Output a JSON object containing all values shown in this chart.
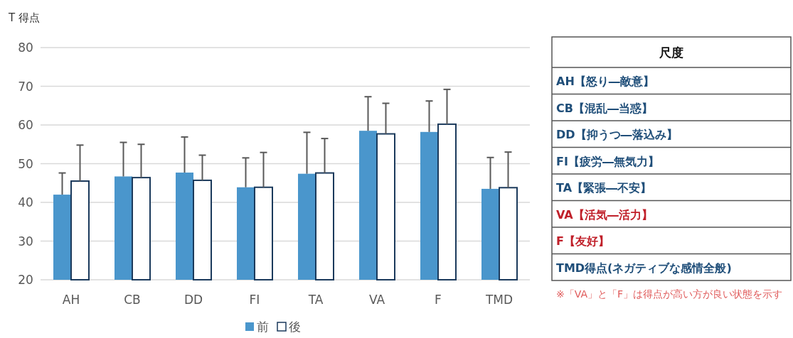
{
  "chart_data": [
    {
      "type": "bar",
      "ylabel": "T 得点",
      "categories": [
        "AH",
        "CB",
        "DD",
        "FI",
        "TA",
        "VA",
        "F",
        "TMD"
      ],
      "ylim": [
        20,
        80
      ],
      "yticks": [
        20,
        30,
        40,
        50,
        60,
        70,
        80
      ],
      "grid": "y",
      "legend": "bottom",
      "series": [
        {
          "name": "前",
          "color": "#4a96cc",
          "values": [
            42.0,
            46.7,
            47.7,
            43.9,
            47.4,
            58.5,
            58.2,
            43.5
          ],
          "errors": [
            [
              42.0,
              47.6
            ],
            [
              46.7,
              55.5
            ],
            [
              47.7,
              56.9
            ],
            [
              43.9,
              51.5
            ],
            [
              47.4,
              58.1
            ],
            [
              58.5,
              67.3
            ],
            [
              58.2,
              66.2
            ],
            [
              43.5,
              51.6
            ]
          ]
        },
        {
          "name": "後",
          "color": "#ffffff",
          "values": [
            45.5,
            46.4,
            45.7,
            43.9,
            47.6,
            57.7,
            60.2,
            43.8
          ],
          "errors": [
            [
              45.5,
              54.8
            ],
            [
              46.4,
              55.0
            ],
            [
              45.7,
              52.2
            ],
            [
              43.9,
              52.9
            ],
            [
              47.6,
              56.5
            ],
            [
              57.7,
              65.6
            ],
            [
              60.2,
              69.2
            ],
            [
              43.8,
              53.0
            ]
          ]
        }
      ]
    },
    {
      "type": "other",
      "title": "尺度",
      "annotations": [
        "AH【怒り―敵意】",
        "CB【混乱―当惑】",
        "DD【抑うつ―落込み】",
        "FI【疲労―無気力】",
        "TA【緊張―不安】",
        "VA【活気―活力】",
        "F【友好】",
        "TMD得点(ネガティブな感情全般)",
        "※「VA」と「F」は得点が高い方が良い状態を示す"
      ],
      "colors": [
        "#1f4e79",
        "#1f4e79",
        "#1f4e79",
        "#1f4e79",
        "#1f4e79",
        "#c0202a",
        "#c0202a",
        "#1f4e79",
        "#e05a5a"
      ]
    }
  ]
}
